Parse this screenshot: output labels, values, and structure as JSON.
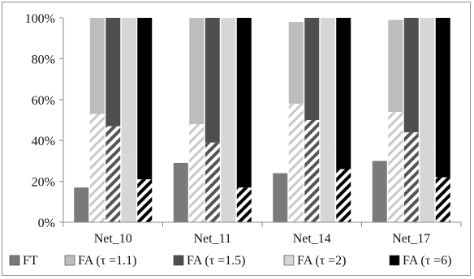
{
  "chart_data": {
    "type": "bar",
    "subtype": "stacked-percent",
    "title": "",
    "xlabel": "",
    "ylabel": "",
    "ylim": [
      0,
      100
    ],
    "yticks": [
      "0%",
      "20%",
      "40%",
      "60%",
      "80%",
      "100%"
    ],
    "grid": false,
    "legend_position": "bottom",
    "categories": [
      "Net_10",
      "Net_11",
      "Net_14",
      "Net_17"
    ],
    "series": [
      {
        "name": "FT",
        "color": "#7a7a7a",
        "pattern": "solid-gray",
        "lower": [
          17,
          29,
          24,
          30
        ],
        "total": [
          17,
          29,
          24,
          30
        ]
      },
      {
        "name": "FA (τ =1.1)",
        "color": "#bdbdbd",
        "pattern": "light-diagonal-over-gray",
        "lower": [
          53,
          48,
          58,
          54
        ],
        "total": [
          100,
          100,
          98,
          99
        ]
      },
      {
        "name": "FA (τ =1.5)",
        "color": "#4f4f4f",
        "pattern": "dark-diagonal-over-darkgray",
        "lower": [
          47,
          39,
          50,
          44
        ],
        "total": [
          100,
          100,
          100,
          100
        ]
      },
      {
        "name": "FA (τ =2)",
        "color": "#d6d6d6",
        "pattern": "solid-light-gray",
        "lower": [
          33,
          34,
          38,
          37
        ],
        "total": [
          100,
          100,
          100,
          100
        ]
      },
      {
        "name": "FA (τ =6)",
        "color": "#000000",
        "pattern": "black-white-diagonal-over-black",
        "lower": [
          21,
          17,
          26,
          22
        ],
        "total": [
          100,
          100,
          100,
          100
        ]
      }
    ]
  }
}
